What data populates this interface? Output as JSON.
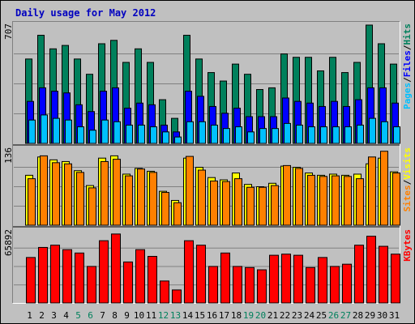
{
  "chart_data": {
    "type": "bar",
    "title": "Daily usage for May 2012",
    "colors": {
      "background": "#c0c0c0",
      "title": "#0000c0",
      "axis_text": "#000000",
      "gridline": "#808080",
      "hits": "#00805c",
      "files": "#0000ff",
      "pages": "#00c0ff",
      "visits": "#ffff00",
      "sites": "#ff8000",
      "kbytes": "#ff0000",
      "weekend_label": "#00805c",
      "weekday_label": "#000000"
    },
    "categories": [
      "1",
      "2",
      "3",
      "4",
      "5",
      "6",
      "7",
      "8",
      "9",
      "10",
      "11",
      "12",
      "13",
      "14",
      "15",
      "16",
      "17",
      "18",
      "19",
      "20",
      "21",
      "22",
      "23",
      "24",
      "25",
      "26",
      "27",
      "28",
      "29",
      "30",
      "31"
    ],
    "weekend_days": [
      "5",
      "6",
      "12",
      "13",
      "19",
      "20",
      "26",
      "27"
    ],
    "panels": [
      {
        "id": "hits-files-pages",
        "max_label": "707",
        "ylim": [
          0,
          707
        ],
        "legend": [
          {
            "name": "Pages",
            "color": "#00c0ff"
          },
          {
            "name": "/",
            "color": "#000000"
          },
          {
            "name": "Files",
            "color": "#0000ff"
          },
          {
            "name": "/",
            "color": "#000000"
          },
          {
            "name": "Hits",
            "color": "#00805c"
          }
        ],
        "series": [
          {
            "name": "Hits",
            "color": "#00805c",
            "values": [
              500,
              640,
              560,
              580,
              500,
              410,
              590,
              610,
              480,
              560,
              480,
              260,
              150,
              640,
              500,
              420,
              370,
              470,
              410,
              320,
              330,
              530,
              510,
              510,
              430,
              510,
              420,
              480,
              700,
              590,
              470
            ]
          },
          {
            "name": "Files",
            "color": "#0000ff",
            "values": [
              250,
              330,
              310,
              300,
              230,
              190,
              310,
              330,
              210,
              240,
              230,
              110,
              70,
              310,
              280,
              220,
              180,
              210,
              160,
              160,
              160,
              270,
              250,
              240,
              220,
              250,
              220,
              260,
              330,
              330,
              240
            ]
          },
          {
            "name": "Pages",
            "color": "#00c0ff",
            "values": [
              140,
              170,
              150,
              140,
              100,
              80,
              140,
              130,
              110,
              110,
              100,
              70,
              40,
              130,
              130,
              110,
              90,
              100,
              70,
              90,
              90,
              120,
              110,
              100,
              100,
              100,
              100,
              110,
              150,
              130,
              100
            ]
          }
        ]
      },
      {
        "id": "visits-sites",
        "max_label": "136",
        "ylim": [
          0,
          136
        ],
        "legend": [
          {
            "name": "Sites",
            "color": "#ff8000"
          },
          {
            "name": "/",
            "color": "#000000"
          },
          {
            "name": "Visits",
            "color": "#ffff00"
          }
        ],
        "series": [
          {
            "name": "Visits",
            "color": "#ffff00",
            "values": [
              88,
              120,
              115,
              112,
              96,
              70,
              118,
              122,
              90,
              100,
              95,
              60,
              44,
              118,
              102,
              84,
              80,
              92,
              72,
              68,
              74,
              104,
              102,
              92,
              88,
              90,
              88,
              90,
              108,
              118,
              94
            ]
          },
          {
            "name": "Sites",
            "color": "#ff8000",
            "values": [
              82,
              122,
              110,
              108,
              93,
              66,
              112,
              116,
              87,
              99,
              93,
              58,
              40,
              121,
              97,
              78,
              77,
              82,
              67,
              67,
              70,
              105,
              100,
              88,
              86,
              87,
              86,
              82,
              120,
              130,
              92
            ]
          }
        ]
      },
      {
        "id": "kbytes",
        "max_label": "65892",
        "ylim": [
          0,
          65892
        ],
        "legend": [
          {
            "name": "KBytes",
            "color": "#ff0000"
          }
        ],
        "series": [
          {
            "name": "KBytes",
            "color": "#ff0000",
            "values": [
              41000,
              50000,
              52000,
              48000,
              45000,
              33000,
              56000,
              62000,
              37000,
              48000,
              42000,
              20000,
              12000,
              56000,
              52000,
              33000,
              45000,
              33000,
              32000,
              30000,
              43000,
              44000,
              43000,
              32000,
              41000,
              33000,
              35000,
              52000,
              60000,
              51000,
              44000
            ]
          }
        ]
      }
    ]
  }
}
